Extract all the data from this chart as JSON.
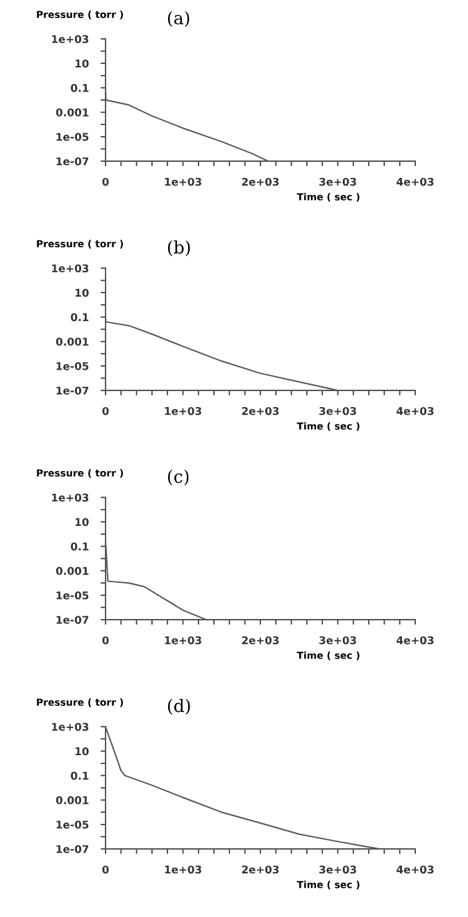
{
  "chart_data": [
    {
      "type": "line",
      "title": "(a)",
      "xlabel": "Time ( sec )",
      "ylabel": "Pressure ( torr )",
      "log": "y",
      "grid": false,
      "marker": "none",
      "line_style": "solid",
      "xlim": [
        0,
        4000
      ],
      "ylim": [
        1e-07,
        1000
      ],
      "xticks": [
        0,
        {
          "value": 200,
          "label": null
        },
        {
          "value": 400,
          "label": null
        },
        {
          "value": 600,
          "label": null
        },
        {
          "value": 800,
          "label": null
        },
        {
          "value": 1000,
          "label": "1e+03"
        },
        {
          "value": 1200,
          "label": null
        },
        {
          "value": 1400,
          "label": null
        },
        {
          "value": 1600,
          "label": null
        },
        {
          "value": 1800,
          "label": null
        },
        {
          "value": 2000,
          "label": "2e+03"
        },
        {
          "value": 2200,
          "label": null
        },
        {
          "value": 2400,
          "label": null
        },
        {
          "value": 2600,
          "label": null
        },
        {
          "value": 2800,
          "label": null
        },
        {
          "value": 3000,
          "label": "3e+03"
        },
        {
          "value": 3200,
          "label": null
        },
        {
          "value": 3400,
          "label": null
        },
        {
          "value": 3600,
          "label": null
        },
        {
          "value": 3800,
          "label": null
        },
        {
          "value": 4000,
          "label": "4e+03"
        }
      ],
      "yticks": [
        {
          "value": 1e-07,
          "label": "1e-07"
        },
        {
          "value": 1e-06,
          "label": null
        },
        {
          "value": 1e-05,
          "label": "1e-05"
        },
        {
          "value": 0.0001,
          "label": null
        },
        0.001,
        {
          "value": 0.01,
          "label": null
        },
        0.1,
        {
          "value": 1,
          "label": null
        },
        10,
        {
          "value": 100,
          "label": null
        },
        {
          "value": 1000,
          "label": "1e+03"
        }
      ],
      "series": [
        {
          "color": "#555555",
          "x": [
            0,
            5,
            300,
            600,
            1000,
            1500,
            1900,
            2100
          ],
          "values": [
            0.1,
            0.01,
            0.004,
            0.0005,
            5e-05,
            4e-06,
            4e-07,
            1e-07
          ]
        }
      ]
    },
    {
      "type": "line",
      "title": "(b)",
      "xlabel": "Time ( sec )",
      "ylabel": "Pressure ( torr )",
      "log": "y",
      "grid": false,
      "marker": "none",
      "line_style": "solid",
      "xlim": [
        0,
        4000
      ],
      "ylim": [
        1e-07,
        1000
      ],
      "xticks": [
        0,
        {
          "value": 200,
          "label": null
        },
        {
          "value": 400,
          "label": null
        },
        {
          "value": 600,
          "label": null
        },
        {
          "value": 800,
          "label": null
        },
        {
          "value": 1000,
          "label": "1e+03"
        },
        {
          "value": 1200,
          "label": null
        },
        {
          "value": 1400,
          "label": null
        },
        {
          "value": 1600,
          "label": null
        },
        {
          "value": 1800,
          "label": null
        },
        {
          "value": 2000,
          "label": "2e+03"
        },
        {
          "value": 2200,
          "label": null
        },
        {
          "value": 2400,
          "label": null
        },
        {
          "value": 2600,
          "label": null
        },
        {
          "value": 2800,
          "label": null
        },
        {
          "value": 3000,
          "label": "3e+03"
        },
        {
          "value": 3200,
          "label": null
        },
        {
          "value": 3400,
          "label": null
        },
        {
          "value": 3600,
          "label": null
        },
        {
          "value": 3800,
          "label": null
        },
        {
          "value": 4000,
          "label": "4e+03"
        }
      ],
      "yticks": [
        {
          "value": 1e-07,
          "label": "1e-07"
        },
        {
          "value": 1e-06,
          "label": null
        },
        {
          "value": 1e-05,
          "label": "1e-05"
        },
        {
          "value": 0.0001,
          "label": null
        },
        0.001,
        {
          "value": 0.01,
          "label": null
        },
        0.1,
        {
          "value": 1,
          "label": null
        },
        10,
        {
          "value": 100,
          "label": null
        },
        {
          "value": 1000,
          "label": "1e+03"
        }
      ],
      "series": [
        {
          "color": "#555555",
          "x": [
            0,
            5,
            300,
            600,
            1000,
            1500,
            2000,
            2500,
            2900,
            3000
          ],
          "values": [
            0.1,
            0.04,
            0.02,
            0.004,
            0.0004,
            2.5e-05,
            2.5e-06,
            5e-07,
            1.4e-07,
            1e-07
          ]
        }
      ]
    },
    {
      "type": "line",
      "title": "(c)",
      "xlabel": "Time ( sec )",
      "ylabel": "Pressure ( torr )",
      "log": "y",
      "grid": false,
      "marker": "none",
      "line_style": "solid",
      "xlim": [
        0,
        4000
      ],
      "ylim": [
        1e-07,
        1000
      ],
      "xticks": [
        0,
        {
          "value": 200,
          "label": null
        },
        {
          "value": 400,
          "label": null
        },
        {
          "value": 600,
          "label": null
        },
        {
          "value": 800,
          "label": null
        },
        {
          "value": 1000,
          "label": "1e+03"
        },
        {
          "value": 1200,
          "label": null
        },
        {
          "value": 1400,
          "label": null
        },
        {
          "value": 1600,
          "label": null
        },
        {
          "value": 1800,
          "label": null
        },
        {
          "value": 2000,
          "label": "2e+03"
        },
        {
          "value": 2200,
          "label": null
        },
        {
          "value": 2400,
          "label": null
        },
        {
          "value": 2600,
          "label": null
        },
        {
          "value": 2800,
          "label": null
        },
        {
          "value": 3000,
          "label": "3e+03"
        },
        {
          "value": 3200,
          "label": null
        },
        {
          "value": 3400,
          "label": null
        },
        {
          "value": 3600,
          "label": null
        },
        {
          "value": 3800,
          "label": null
        },
        {
          "value": 4000,
          "label": "4e+03"
        }
      ],
      "yticks": [
        {
          "value": 1e-07,
          "label": "1e-07"
        },
        {
          "value": 1e-06,
          "label": null
        },
        {
          "value": 1e-05,
          "label": "1e-05"
        },
        {
          "value": 0.0001,
          "label": null
        },
        0.001,
        {
          "value": 0.01,
          "label": null
        },
        0.1,
        {
          "value": 1,
          "label": null
        },
        10,
        {
          "value": 100,
          "label": null
        },
        {
          "value": 1000,
          "label": "1e+03"
        }
      ],
      "series": [
        {
          "color": "#555555",
          "x": [
            0,
            30,
            300,
            500,
            1000,
            1300
          ],
          "values": [
            0.3,
            0.00014,
            0.0001,
            5e-05,
            6e-07,
            1e-07
          ]
        }
      ]
    },
    {
      "type": "line",
      "title": "(d)",
      "xlabel": "Time ( sec )",
      "ylabel": "Pressure ( torr )",
      "log": "y",
      "grid": false,
      "marker": "none",
      "line_style": "solid",
      "xlim": [
        0,
        4000
      ],
      "ylim": [
        1e-07,
        1000
      ],
      "xticks": [
        0,
        {
          "value": 200,
          "label": null
        },
        {
          "value": 400,
          "label": null
        },
        {
          "value": 600,
          "label": null
        },
        {
          "value": 800,
          "label": null
        },
        {
          "value": 1000,
          "label": "1e+03"
        },
        {
          "value": 1200,
          "label": null
        },
        {
          "value": 1400,
          "label": null
        },
        {
          "value": 1600,
          "label": null
        },
        {
          "value": 1800,
          "label": null
        },
        {
          "value": 2000,
          "label": "2e+03"
        },
        {
          "value": 2200,
          "label": null
        },
        {
          "value": 2400,
          "label": null
        },
        {
          "value": 2600,
          "label": null
        },
        {
          "value": 2800,
          "label": null
        },
        {
          "value": 3000,
          "label": "3e+03"
        },
        {
          "value": 3200,
          "label": null
        },
        {
          "value": 3400,
          "label": null
        },
        {
          "value": 3600,
          "label": null
        },
        {
          "value": 3800,
          "label": null
        },
        {
          "value": 4000,
          "label": "4e+03"
        }
      ],
      "yticks": [
        {
          "value": 1e-07,
          "label": "1e-07"
        },
        {
          "value": 1e-06,
          "label": null
        },
        {
          "value": 1e-05,
          "label": "1e-05"
        },
        {
          "value": 0.0001,
          "label": null
        },
        0.001,
        {
          "value": 0.01,
          "label": null
        },
        0.1,
        {
          "value": 1,
          "label": null
        },
        10,
        {
          "value": 100,
          "label": null
        },
        {
          "value": 1000,
          "label": "1e+03"
        }
      ],
      "series": [
        {
          "color": "#555555",
          "x": [
            0,
            100,
            200,
            250,
            600,
            1000,
            1500,
            2000,
            2500,
            3000,
            3500,
            3550
          ],
          "values": [
            1000,
            16,
            0.25,
            0.1,
            0.016,
            0.0016,
            0.0001,
            1.3e-05,
            1.6e-06,
            4e-07,
            1.1e-07,
            1e-07
          ]
        }
      ]
    }
  ]
}
